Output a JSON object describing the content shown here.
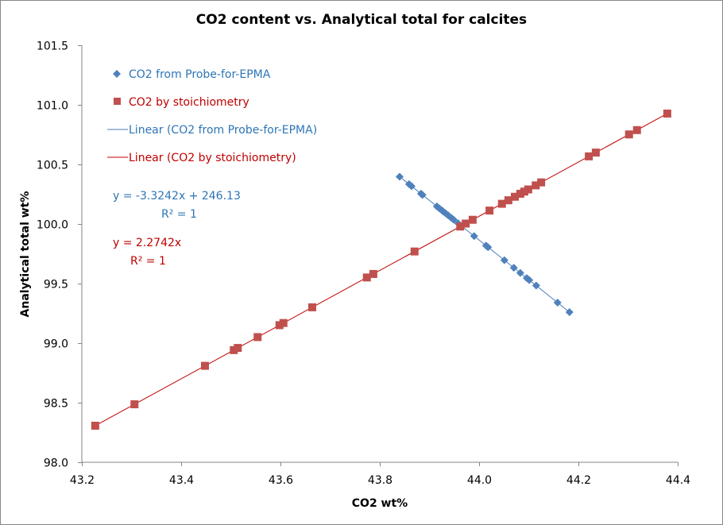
{
  "chart_data": {
    "type": "scatter",
    "title": "CO2 content vs. Analytical  total for calcites",
    "xlabel": "CO2 wt%",
    "ylabel": "Analytical total wt%",
    "xlim": [
      43.2,
      44.4
    ],
    "ylim": [
      98.0,
      101.5
    ],
    "xticks": [
      43.2,
      43.4,
      43.6,
      43.8,
      44.0,
      44.2,
      44.4
    ],
    "xtick_labels": [
      "43.2",
      "43.4",
      "43.6",
      "43.8",
      "44.0",
      "44.2",
      "44.4"
    ],
    "yticks": [
      98.0,
      98.5,
      99.0,
      99.5,
      100.0,
      100.5,
      101.0,
      101.5
    ],
    "ytick_labels": [
      "98.0",
      "98.5",
      "99.0",
      "99.5",
      "100.0",
      "100.5",
      "101.0",
      "101.5"
    ],
    "grid": false,
    "legend_position": "top-left",
    "series": [
      {
        "name": "CO2 from Probe-for-EPMA",
        "marker": "diamond",
        "color": "#4F81BD",
        "x": [
          43.84,
          43.859,
          43.864,
          43.883,
          43.886,
          43.915,
          43.92,
          43.925,
          43.928,
          43.933,
          43.938,
          43.944,
          43.949,
          43.958,
          43.965,
          43.99,
          44.014,
          44.018,
          44.051,
          44.07,
          44.083,
          44.096,
          44.101,
          44.115,
          44.158,
          44.182
        ],
        "trendline": {
          "name": "Linear (CO2 from Probe-for-EPMA)",
          "slope": -3.3242,
          "intercept": 246.13,
          "color": "#4A7EBB",
          "equation": "y = -3.3242x + 246.13",
          "r2_label": "R² = 1"
        }
      },
      {
        "name": "CO2 by stoichiometry",
        "marker": "square",
        "color": "#C0504D",
        "x": [
          43.227,
          43.306,
          43.448,
          43.506,
          43.514,
          43.554,
          43.598,
          43.606,
          43.664,
          43.774,
          43.787,
          43.87,
          43.962,
          43.973,
          43.987,
          44.021,
          44.046,
          44.059,
          44.072,
          44.083,
          44.091,
          44.099,
          44.114,
          44.125,
          44.221,
          44.235,
          44.302,
          44.318,
          44.379
        ],
        "trendline": {
          "name": "Linear (CO2 by stoichiometry)",
          "slope": 2.2742,
          "intercept": 0,
          "color": "#C00000",
          "equation": "y = 2.2742x",
          "r2_label": "R² = 1"
        }
      }
    ]
  },
  "colors": {
    "blue_text": "#2E75B6",
    "red_text": "#C00000",
    "axis": "#868686"
  }
}
